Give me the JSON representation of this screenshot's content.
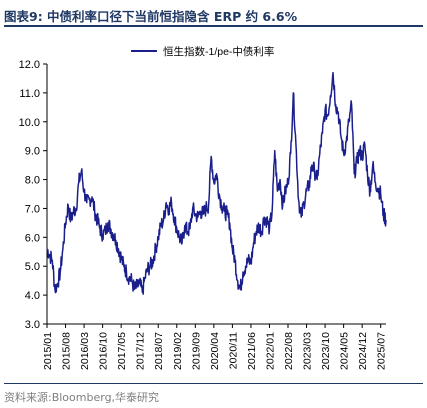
{
  "header": {
    "title": "图表9:  中债利率口径下当前恒指隐含 ERP 约 6.6%"
  },
  "footer": {
    "source": "资料来源:Bloomberg,华泰研究"
  },
  "chart_data": {
    "type": "line",
    "title": "",
    "xlabel": "",
    "ylabel": "",
    "ylim": [
      3.0,
      12.0
    ],
    "ytick_step": 1.0,
    "yticks": [
      "3.0",
      "4.0",
      "5.0",
      "6.0",
      "7.0",
      "8.0",
      "9.0",
      "10.0",
      "11.0",
      "12.0"
    ],
    "xrange": [
      "2015-01",
      "2025-09"
    ],
    "xticks": [
      "2015/01",
      "2015/08",
      "2016/03",
      "2016/10",
      "2017/05",
      "2017/12",
      "2018/07",
      "2019/02",
      "2019/09",
      "2020/04",
      "2020/11",
      "2021/06",
      "2022/01",
      "2022/08",
      "2023/03",
      "2023/10",
      "2024/05",
      "2024/12",
      "2025/07"
    ],
    "grid": false,
    "legend_position": "top",
    "series": [
      {
        "name": "恒生指数-1/pe-中债利率",
        "color": "#1b1f8c",
        "points": [
          [
            "2015-01",
            5.6
          ],
          [
            "2015-02",
            5.4
          ],
          [
            "2015-03",
            5.2
          ],
          [
            "2015-04",
            4.2
          ],
          [
            "2015-05",
            4.4
          ],
          [
            "2015-06",
            4.8
          ],
          [
            "2015-07",
            5.6
          ],
          [
            "2015-08",
            6.5
          ],
          [
            "2015-09",
            7.1
          ],
          [
            "2015-10",
            6.6
          ],
          [
            "2015-11",
            6.9
          ],
          [
            "2015-12",
            7.0
          ],
          [
            "2016-01",
            7.9
          ],
          [
            "2016-02",
            8.3
          ],
          [
            "2016-03",
            7.6
          ],
          [
            "2016-04",
            7.2
          ],
          [
            "2016-05",
            7.3
          ],
          [
            "2016-06",
            7.4
          ],
          [
            "2016-07",
            6.9
          ],
          [
            "2016-08",
            6.6
          ],
          [
            "2016-09",
            6.3
          ],
          [
            "2016-10",
            6.1
          ],
          [
            "2016-11",
            6.2
          ],
          [
            "2016-12",
            6.5
          ],
          [
            "2017-01",
            6.3
          ],
          [
            "2017-02",
            6.1
          ],
          [
            "2017-03",
            5.9
          ],
          [
            "2017-04",
            5.6
          ],
          [
            "2017-05",
            5.3
          ],
          [
            "2017-06",
            5.0
          ],
          [
            "2017-07",
            4.8
          ],
          [
            "2017-08",
            4.6
          ],
          [
            "2017-09",
            4.5
          ],
          [
            "2017-10",
            4.2
          ],
          [
            "2017-11",
            4.3
          ],
          [
            "2017-12",
            4.4
          ],
          [
            "2018-01",
            4.1
          ],
          [
            "2018-02",
            4.6
          ],
          [
            "2018-03",
            4.9
          ],
          [
            "2018-04",
            5.0
          ],
          [
            "2018-05",
            5.2
          ],
          [
            "2018-06",
            5.6
          ],
          [
            "2018-07",
            6.0
          ],
          [
            "2018-08",
            6.4
          ],
          [
            "2018-09",
            6.6
          ],
          [
            "2018-10",
            7.2
          ],
          [
            "2018-11",
            7.0
          ],
          [
            "2018-12",
            7.2
          ],
          [
            "2019-01",
            6.7
          ],
          [
            "2019-02",
            6.3
          ],
          [
            "2019-03",
            6.0
          ],
          [
            "2019-04",
            5.8
          ],
          [
            "2019-05",
            6.4
          ],
          [
            "2019-06",
            6.2
          ],
          [
            "2019-07",
            6.3
          ],
          [
            "2019-08",
            7.0
          ],
          [
            "2019-09",
            6.8
          ],
          [
            "2019-10",
            6.7
          ],
          [
            "2019-11",
            6.9
          ],
          [
            "2019-12",
            6.8
          ],
          [
            "2020-01",
            7.0
          ],
          [
            "2020-02",
            7.1
          ],
          [
            "2020-03",
            8.8
          ],
          [
            "2020-04",
            7.9
          ],
          [
            "2020-05",
            8.2
          ],
          [
            "2020-06",
            7.5
          ],
          [
            "2020-07",
            7.1
          ],
          [
            "2020-08",
            6.9
          ],
          [
            "2020-09",
            6.8
          ],
          [
            "2020-10",
            6.5
          ],
          [
            "2020-11",
            5.6
          ],
          [
            "2020-12",
            5.2
          ],
          [
            "2021-01",
            4.5
          ],
          [
            "2021-02",
            4.2
          ],
          [
            "2021-03",
            4.8
          ],
          [
            "2021-04",
            5.0
          ],
          [
            "2021-05",
            5.2
          ],
          [
            "2021-06",
            5.1
          ],
          [
            "2021-07",
            5.8
          ],
          [
            "2021-08",
            6.2
          ],
          [
            "2021-09",
            6.4
          ],
          [
            "2021-10",
            6.2
          ],
          [
            "2021-11",
            6.7
          ],
          [
            "2021-12",
            6.6
          ],
          [
            "2022-01",
            6.3
          ],
          [
            "2022-02",
            6.9
          ],
          [
            "2022-03",
            9.0
          ],
          [
            "2022-04",
            7.6
          ],
          [
            "2022-05",
            8.0
          ],
          [
            "2022-06",
            7.1
          ],
          [
            "2022-07",
            7.6
          ],
          [
            "2022-08",
            7.9
          ],
          [
            "2022-09",
            8.9
          ],
          [
            "2022-10",
            11.0
          ],
          [
            "2022-11",
            9.2
          ],
          [
            "2022-12",
            7.3
          ],
          [
            "2023-01",
            6.7
          ],
          [
            "2023-02",
            7.2
          ],
          [
            "2023-03",
            7.6
          ],
          [
            "2023-04",
            7.8
          ],
          [
            "2023-05",
            8.5
          ],
          [
            "2023-06",
            8.3
          ],
          [
            "2023-07",
            8.0
          ],
          [
            "2023-08",
            8.9
          ],
          [
            "2023-09",
            9.6
          ],
          [
            "2023-10",
            10.4
          ],
          [
            "2023-11",
            10.2
          ],
          [
            "2023-12",
            10.9
          ],
          [
            "2024-01",
            11.7
          ],
          [
            "2024-02",
            10.6
          ],
          [
            "2024-03",
            10.3
          ],
          [
            "2024-04",
            9.5
          ],
          [
            "2024-05",
            8.9
          ],
          [
            "2024-06",
            9.3
          ],
          [
            "2024-07",
            10.0
          ],
          [
            "2024-08",
            10.6
          ],
          [
            "2024-09",
            8.2
          ],
          [
            "2024-10",
            8.6
          ],
          [
            "2024-11",
            9.0
          ],
          [
            "2024-12",
            8.8
          ],
          [
            "2025-01",
            9.2
          ],
          [
            "2025-02",
            8.2
          ],
          [
            "2025-03",
            7.6
          ],
          [
            "2025-04",
            8.5
          ],
          [
            "2025-05",
            7.9
          ],
          [
            "2025-06",
            7.7
          ],
          [
            "2025-07",
            7.5
          ],
          [
            "2025-08",
            6.8
          ],
          [
            "2025-09",
            6.6
          ]
        ]
      }
    ]
  }
}
